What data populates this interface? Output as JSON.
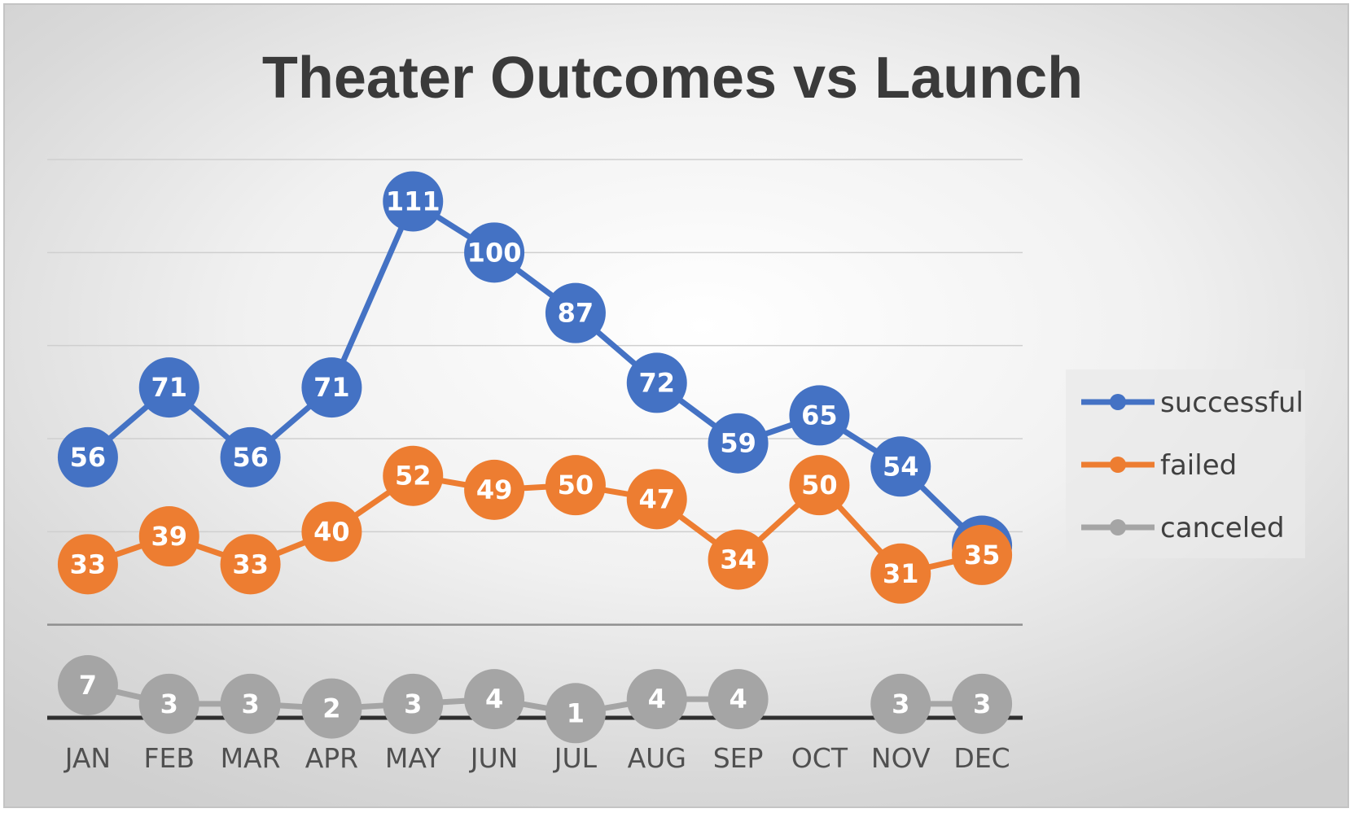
{
  "chart_data": {
    "type": "line",
    "title": "Theater Outcomes vs Launch",
    "xlabel": "",
    "ylabel": "",
    "categories": [
      "JAN",
      "FEB",
      "MAR",
      "APR",
      "MAY",
      "JUN",
      "JUL",
      "AUG",
      "SEP",
      "OCT",
      "NOV",
      "DEC"
    ],
    "ylim": [
      0,
      120
    ],
    "gridlines": [
      20,
      40,
      60,
      80,
      100,
      120
    ],
    "grid": true,
    "legend_position": "right",
    "series": [
      {
        "name": "successful",
        "color": "#4472C4",
        "values": [
          56,
          71,
          56,
          71,
          111,
          100,
          87,
          72,
          59,
          65,
          54,
          37
        ]
      },
      {
        "name": "failed",
        "color": "#ED7D31",
        "values": [
          33,
          39,
          33,
          40,
          52,
          49,
          50,
          47,
          34,
          50,
          31,
          35
        ]
      },
      {
        "name": "canceled",
        "color": "#A5A5A5",
        "values": [
          7,
          3,
          3,
          2,
          3,
          4,
          1,
          4,
          4,
          null,
          3,
          3
        ]
      }
    ]
  }
}
